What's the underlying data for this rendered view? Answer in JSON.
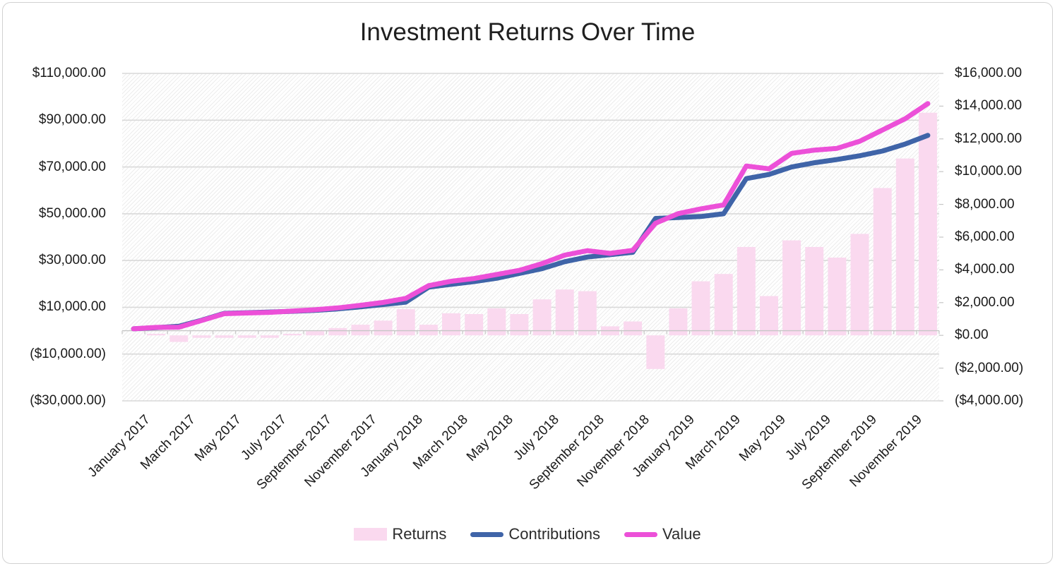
{
  "title": "Investment Returns Over Time",
  "legend": [
    {
      "label": "Returns",
      "swatch": "bar",
      "color": "#fad9ef"
    },
    {
      "label": "Contributions",
      "swatch": "line",
      "color": "#3f64a8"
    },
    {
      "label": "Value",
      "swatch": "line",
      "color": "#ec50d8"
    }
  ],
  "axes": {
    "left_ticks": [
      "$110,000.00",
      "$90,000.00",
      "$70,000.00",
      "$50,000.00",
      "$30,000.00",
      "$10,000.00",
      "($10,000.00)",
      "($30,000.00)"
    ],
    "right_ticks": [
      "$16,000.00",
      "$14,000.00",
      "$12,000.00",
      "$10,000.00",
      "$8,000.00",
      "$6,000.00",
      "$4,000.00",
      "$2,000.00",
      "$0.00",
      "($2,000.00)",
      "($4,000.00)"
    ],
    "x_ticks": [
      "January 2017",
      "March 2017",
      "May 2017",
      "July 2017",
      "September 2017",
      "November 2017",
      "January 2018",
      "March 2018",
      "May 2018",
      "July 2018",
      "September 2018",
      "November 2018",
      "January 2019",
      "March 2019",
      "May 2019",
      "July 2019",
      "September 2019",
      "November 2019"
    ]
  },
  "chart_data": {
    "type": "combo",
    "title": "Investment Returns Over Time",
    "legend_position": "bottom",
    "grid": true,
    "x": [
      "January 2017",
      "February 2017",
      "March 2017",
      "April 2017",
      "May 2017",
      "June 2017",
      "July 2017",
      "August 2017",
      "September 2017",
      "October 2017",
      "November 2017",
      "December 2017",
      "January 2018",
      "February 2018",
      "March 2018",
      "April 2018",
      "May 2018",
      "June 2018",
      "July 2018",
      "August 2018",
      "September 2018",
      "October 2018",
      "November 2018",
      "December 2018",
      "January 2019",
      "February 2019",
      "March 2019",
      "April 2019",
      "May 2019",
      "June 2019",
      "July 2019",
      "August 2019",
      "September 2019",
      "October 2019",
      "November 2019",
      "December 2019"
    ],
    "left_axis": {
      "range": [
        -30000,
        110000
      ],
      "tick_step": 20000
    },
    "right_axis": {
      "range": [
        -4000,
        16000
      ],
      "tick_step": 2000
    },
    "series": [
      {
        "name": "Returns",
        "type": "bar",
        "axis": "right",
        "color": "#fad9ef",
        "values": [
          0,
          100,
          -400,
          -150,
          -150,
          -150,
          -150,
          100,
          250,
          450,
          650,
          900,
          1600,
          650,
          1350,
          1300,
          1650,
          1300,
          2200,
          2800,
          2700,
          550,
          850,
          -2050,
          1650,
          3300,
          3750,
          5400,
          2400,
          5800,
          5400,
          4750,
          6200,
          9000,
          10800,
          13600
        ]
      },
      {
        "name": "Contributions",
        "type": "line",
        "axis": "left",
        "color": "#3f64a8",
        "values": [
          800,
          1300,
          1900,
          4500,
          7400,
          7700,
          8000,
          8300,
          8700,
          9300,
          10200,
          11200,
          12200,
          18600,
          19800,
          21000,
          22400,
          24500,
          26500,
          29500,
          31500,
          32500,
          33500,
          48000,
          48400,
          48800,
          50000,
          65000,
          66800,
          70000,
          71800,
          73200,
          74800,
          76800,
          79800,
          83500
        ]
      },
      {
        "name": "Value",
        "type": "line",
        "axis": "left",
        "color": "#ec50d8",
        "values": [
          800,
          1400,
          1500,
          4350,
          7250,
          7550,
          7850,
          8400,
          8950,
          9750,
          10850,
          12100,
          13800,
          19250,
          21150,
          22300,
          24050,
          25800,
          28700,
          32300,
          34200,
          33050,
          34350,
          45950,
          50050,
          52100,
          53750,
          70400,
          69200,
          75800,
          77200,
          77950,
          81000,
          85800,
          90600,
          97100
        ]
      }
    ]
  },
  "colors": {
    "gridline": "#d9d9d9",
    "axis_line": "#c6c6c6",
    "text": "#1f1f1f"
  }
}
